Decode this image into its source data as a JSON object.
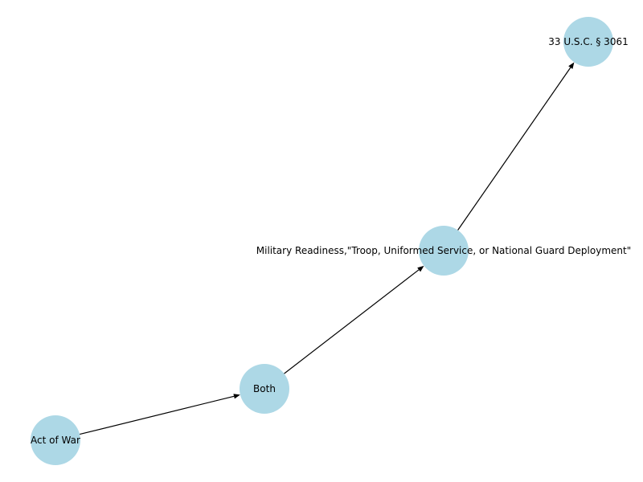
{
  "diagram": {
    "type": "directed-graph",
    "colors": {
      "node_fill": "#add8e6",
      "edge": "#000000",
      "label": "#000000",
      "background": "#ffffff"
    },
    "nodes": [
      {
        "id": "act-of-war",
        "label": "Act of War"
      },
      {
        "id": "both",
        "label": "Both"
      },
      {
        "id": "military-readiness",
        "label": "Military Readiness,\"Troop, Uniformed Service, or National Guard Deployment\""
      },
      {
        "id": "usc-3061",
        "label": "33 U.S.C. § 3061"
      }
    ],
    "edges": [
      {
        "from": "act-of-war",
        "to": "both"
      },
      {
        "from": "both",
        "to": "military-readiness"
      },
      {
        "from": "military-readiness",
        "to": "usc-3061"
      }
    ]
  }
}
